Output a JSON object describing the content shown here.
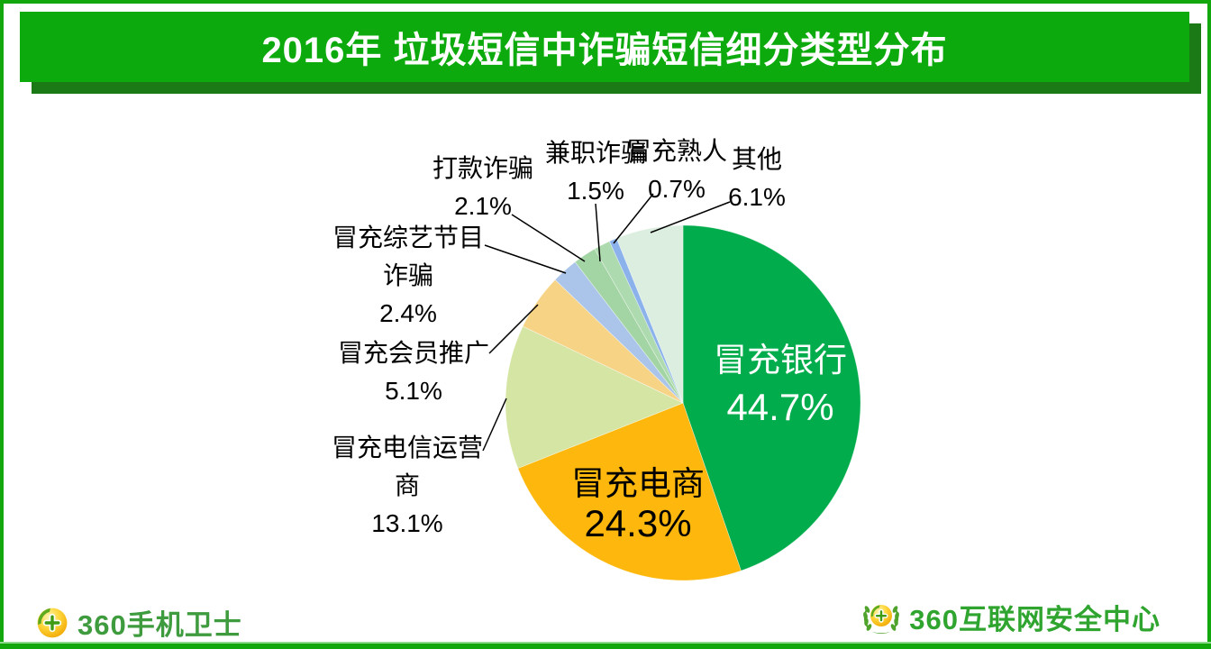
{
  "header": {
    "title": "2016年 垃圾短信中诈骗短信细分类型分布"
  },
  "chart_data": {
    "type": "pie",
    "title": "2016年 垃圾短信中诈骗短信细分类型分布",
    "unit": "%",
    "start_angle_deg": 0,
    "direction": "clockwise",
    "legend": "none",
    "slices": [
      {
        "label": "冒充银行",
        "value": 44.7,
        "pct_text": "44.7%",
        "color": "#00AC4B",
        "label_placement": "inside",
        "label_color": "#FFFFFF"
      },
      {
        "label": "冒充电商",
        "value": 24.3,
        "pct_text": "24.3%",
        "color": "#FDB70D",
        "label_placement": "inside",
        "label_color": "#000000"
      },
      {
        "label": "冒充电信运营商",
        "value": 13.1,
        "pct_text": "13.1%",
        "color": "#D5E5A3",
        "label_placement": "outside",
        "label_lines": [
          "冒充电信运营",
          "商",
          "13.1%"
        ]
      },
      {
        "label": "冒充会员推广",
        "value": 5.1,
        "pct_text": "5.1%",
        "color": "#F6D385",
        "label_placement": "outside",
        "label_lines": [
          "冒充会员推广",
          "5.1%"
        ]
      },
      {
        "label": "冒充综艺节目诈骗",
        "value": 2.4,
        "pct_text": "2.4%",
        "color": "#AAC4EA",
        "label_placement": "outside",
        "label_lines": [
          "冒充综艺节目",
          "诈骗",
          "2.4%"
        ]
      },
      {
        "label": "打款诈骗",
        "value": 2.1,
        "pct_text": "2.1%",
        "color": "#A3D4A4",
        "label_placement": "outside",
        "label_lines": [
          "打款诈骗",
          "2.1%"
        ]
      },
      {
        "label": "兼职诈骗",
        "value": 1.5,
        "pct_text": "1.5%",
        "color": "#ADDAAE",
        "label_placement": "outside",
        "label_lines": [
          "兼职诈骗",
          "1.5%"
        ]
      },
      {
        "label": "冒充熟人",
        "value": 0.7,
        "pct_text": "0.7%",
        "color": "#8CB2EC",
        "label_placement": "outside",
        "label_lines": [
          "冒充熟人",
          "0.7%"
        ]
      },
      {
        "label": "其他",
        "value": 6.1,
        "pct_text": "6.1%",
        "color": "#DBEEDF",
        "label_placement": "outside",
        "label_lines": [
          "其他",
          "6.1%"
        ]
      }
    ]
  },
  "footer": {
    "left_logo_text": "360手机卫士",
    "right_logo_text": "360互联网安全中心"
  },
  "colors": {
    "banner_green": "#0DAA0D",
    "banner_shadow_green": "#1B7A16",
    "frame_green": "#12A80D",
    "leader_line": "#000000"
  }
}
